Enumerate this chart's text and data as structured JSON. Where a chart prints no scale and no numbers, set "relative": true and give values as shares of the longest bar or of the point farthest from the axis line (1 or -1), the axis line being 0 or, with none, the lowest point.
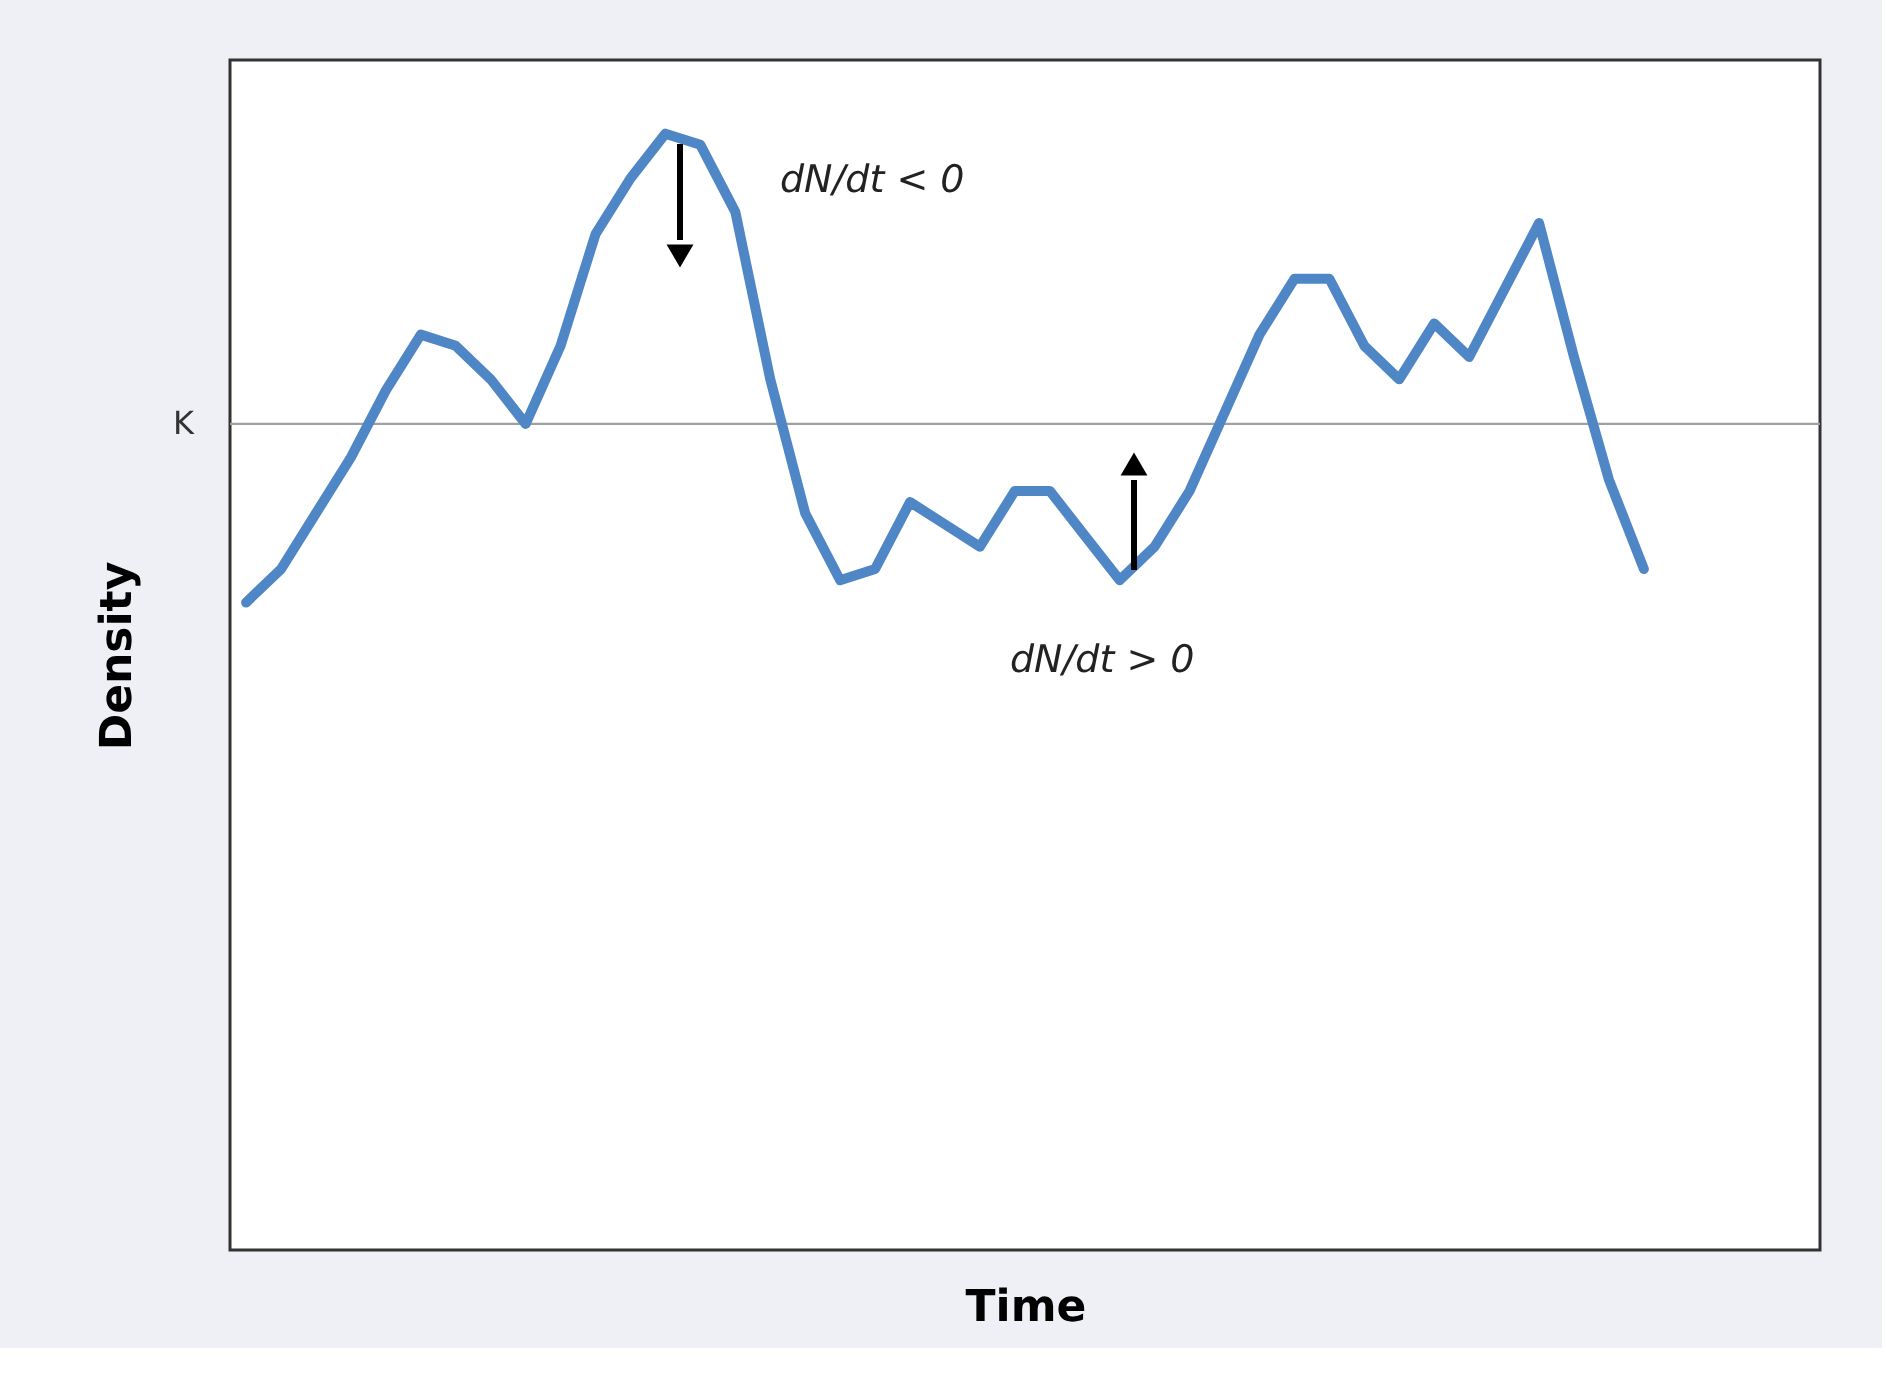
{
  "chart_data": {
    "type": "line",
    "relative": true,
    "xlabel": "Time",
    "ylabel": "Density",
    "categories": [
      null,
      null,
      null,
      null,
      null,
      null,
      null,
      null,
      null,
      null,
      null,
      null,
      null,
      null,
      null,
      null,
      null,
      null,
      null,
      null,
      null,
      null,
      null,
      null,
      null,
      null,
      null,
      null,
      null,
      null,
      null,
      null,
      null,
      null,
      null,
      null,
      null,
      null,
      null,
      null,
      null
    ],
    "series": [
      {
        "color": "#4f86c6",
        "values": [
          0.58,
          0.61,
          0.66,
          0.71,
          0.77,
          0.82,
          0.81,
          0.78,
          0.74,
          0.81,
          0.91,
          0.96,
          1.0,
          0.99,
          0.93,
          0.78,
          0.66,
          0.6,
          0.61,
          0.67,
          0.65,
          0.63,
          0.68,
          0.68,
          0.64,
          0.6,
          0.63,
          0.68,
          0.75,
          0.82,
          0.87,
          0.87,
          0.81,
          0.78,
          0.83,
          0.8,
          0.86,
          0.92,
          0.8,
          0.69,
          0.61
        ]
      }
    ],
    "ref_lines": [
      {
        "axis": "y",
        "value": 0.74,
        "label": "K",
        "color": "#a0a0a0"
      }
    ],
    "annotations": [
      "dN/dt < 0",
      "dN/dt > 0"
    ],
    "grid": false,
    "tick_labels": false,
    "marker": "none",
    "line_style": "solid"
  }
}
